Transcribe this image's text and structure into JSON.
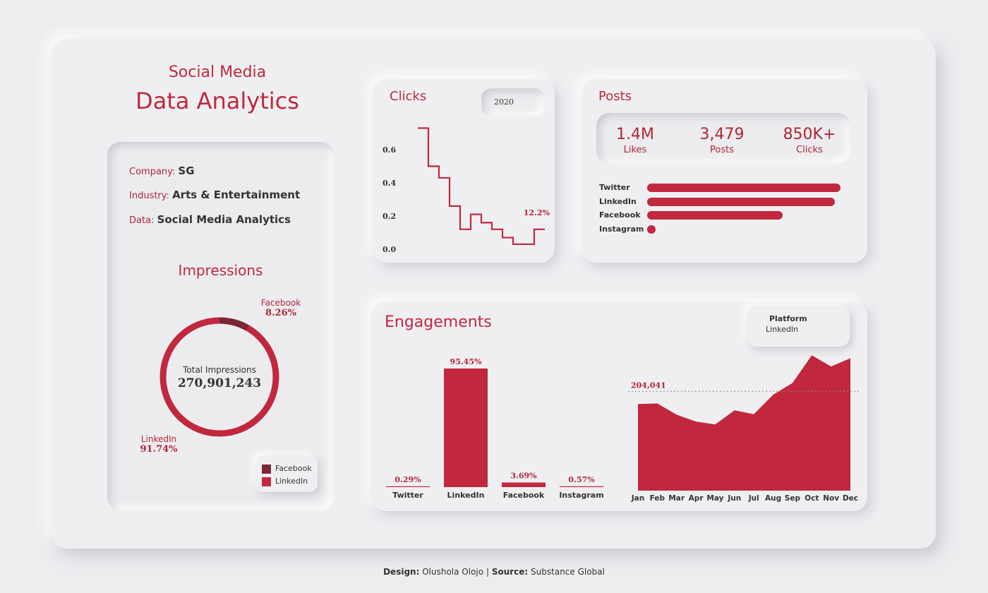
{
  "header": {
    "line1": "Social Media",
    "line2": "Data Analytics"
  },
  "info": {
    "company_label": "Company:",
    "company": "SG",
    "industry_label": "Industry:",
    "industry": "Arts & Entertainment",
    "data_label": "Data:",
    "data": "Social Media Analytics"
  },
  "impressions": {
    "title": "Impressions",
    "center_label": "Total Impressions",
    "total": "270,901,243",
    "facebook_label": "Facebook",
    "facebook_pct": "8.26%",
    "linkedin_label": "LinkedIn",
    "linkedin_pct": "91.74%",
    "legend": [
      "Facebook",
      "LinkedIn"
    ],
    "colors": {
      "facebook": "#7a2634",
      "linkedin": "#c1283e"
    }
  },
  "clicks": {
    "title": "Clicks",
    "year": "2020",
    "end_label": "12.2%"
  },
  "posts": {
    "title": "Posts",
    "kpis": [
      {
        "value": "1.4M",
        "label": "Likes"
      },
      {
        "value": "3,479",
        "label": "Posts"
      },
      {
        "value": "850K+",
        "label": "Clicks"
      }
    ],
    "platform_labels": [
      "Twitter",
      "LinkedIn",
      "Facebook",
      "Instagram"
    ]
  },
  "engagements": {
    "title": "Engagements",
    "filter_label": "Platform",
    "filter_value": "LinkedIn",
    "avg_label": "204,041"
  },
  "footer": {
    "design_label": "Design:",
    "designer": "Olushola Olojo",
    "sep": "|",
    "source_label": "Source:",
    "source": "Substance Global"
  },
  "chart_data": [
    {
      "type": "pie",
      "categories": [
        "Facebook",
        "LinkedIn"
      ],
      "values": [
        8.26,
        91.74
      ],
      "title": "Impressions"
    },
    {
      "type": "line",
      "title": "Clicks",
      "x": [
        1,
        2,
        3,
        4,
        5,
        6,
        7,
        8,
        9,
        10,
        11,
        12
      ],
      "values": [
        0.73,
        0.5,
        0.43,
        0.26,
        0.12,
        0.21,
        0.16,
        0.12,
        0.07,
        0.03,
        0.03,
        0.12
      ],
      "ylim": [
        0.0,
        0.8
      ],
      "yticks": [
        0.0,
        0.2,
        0.4,
        0.6
      ]
    },
    {
      "type": "bar",
      "title": "Posts",
      "categories": [
        "Twitter",
        "LinkedIn",
        "Facebook",
        "Instagram"
      ],
      "values": [
        100,
        97,
        70,
        4
      ]
    },
    {
      "type": "bar",
      "title": "Engagements",
      "categories": [
        "Twitter",
        "LinkedIn",
        "Facebook",
        "Instagram"
      ],
      "values": [
        0.29,
        95.45,
        3.69,
        0.57
      ],
      "labels": [
        "0.29%",
        "95.45%",
        "3.69%",
        "0.57%"
      ],
      "ylim": [
        0,
        100
      ]
    },
    {
      "type": "area",
      "categories": [
        "Jan",
        "Feb",
        "Mar",
        "Apr",
        "May",
        "Jun",
        "Jul",
        "Aug",
        "Sep",
        "Oct",
        "Nov",
        "Dec"
      ],
      "values": [
        178000,
        179000,
        156000,
        142000,
        136000,
        165000,
        157000,
        197000,
        221000,
        278000,
        255000,
        272000
      ],
      "ylim": [
        0,
        290000
      ],
      "reference_line": 204041
    }
  ]
}
